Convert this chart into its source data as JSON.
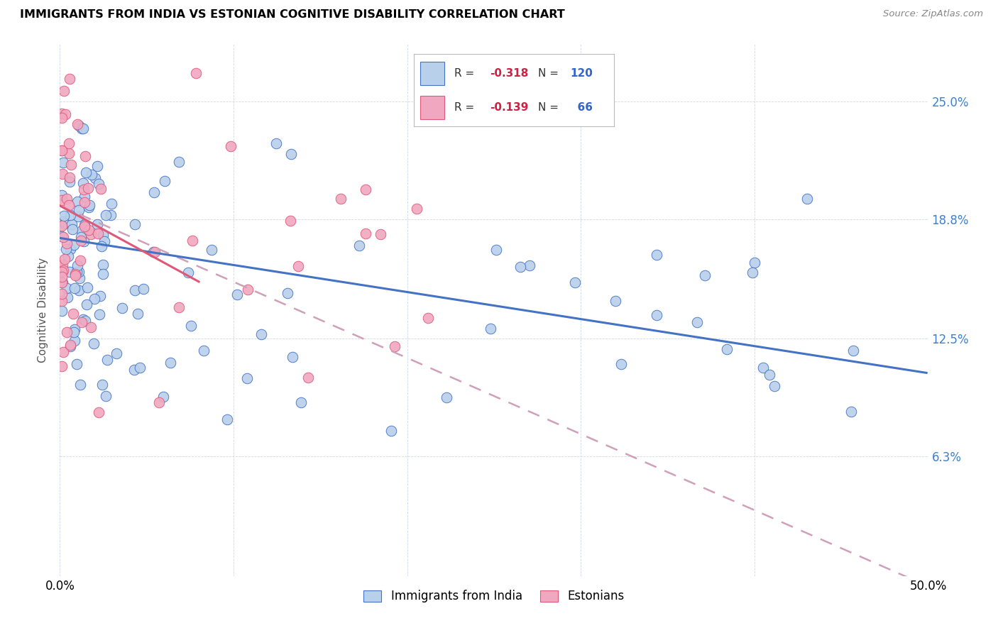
{
  "title": "IMMIGRANTS FROM INDIA VS ESTONIAN COGNITIVE DISABILITY CORRELATION CHART",
  "source": "Source: ZipAtlas.com",
  "ylabel": "Cognitive Disability",
  "xlim": [
    0.0,
    0.5
  ],
  "ylim": [
    0.0,
    0.28
  ],
  "ytick_vals": [
    0.063,
    0.125,
    0.188,
    0.25
  ],
  "ytick_labels": [
    "6.3%",
    "12.5%",
    "18.8%",
    "25.0%"
  ],
  "legend_R1": "-0.318",
  "legend_N1": "120",
  "legend_R2": "-0.139",
  "legend_N2": "66",
  "color_blue": "#b8d0ea",
  "color_pink": "#f0a8c0",
  "line_blue": "#4472c4",
  "line_pink": "#e05878",
  "line_pink_dash": "#d0a0b8"
}
